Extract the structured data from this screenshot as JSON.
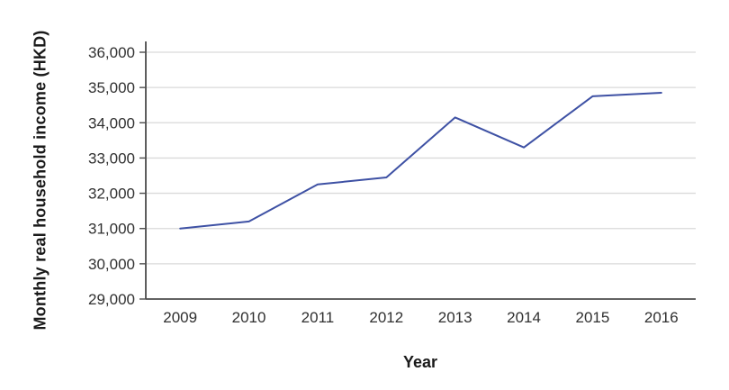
{
  "figure": {
    "background_color": "#ffffff"
  },
  "chart_data": {
    "type": "line",
    "title": "",
    "xlabel": "Year",
    "ylabel": "Monthly real household income (HKD)",
    "x": [
      "2009",
      "2010",
      "2011",
      "2012",
      "2013",
      "2014",
      "2015",
      "2016"
    ],
    "series": [
      {
        "name": "Monthly real household income",
        "values": [
          31000,
          31200,
          32250,
          32450,
          34150,
          33300,
          34750,
          34850
        ],
        "color": "#3E51A4"
      }
    ],
    "ylim": [
      29000,
      36000
    ],
    "yticks": [
      {
        "value": 29000,
        "label": "29,000"
      },
      {
        "value": 30000,
        "label": "30,000"
      },
      {
        "value": 31000,
        "label": "31,000"
      },
      {
        "value": 32000,
        "label": "32,000"
      },
      {
        "value": 33000,
        "label": "33,000"
      },
      {
        "value": 34000,
        "label": "34,000"
      },
      {
        "value": 35000,
        "label": "35,000"
      },
      {
        "value": 36000,
        "label": "36,000"
      }
    ],
    "grid": "horizontal",
    "legend_position": "none",
    "colors": {
      "axis_line": "#4d4d4d",
      "gridline": "#dadada",
      "tick_label": "#303030",
      "axis_title": "#1a1a1a"
    }
  }
}
